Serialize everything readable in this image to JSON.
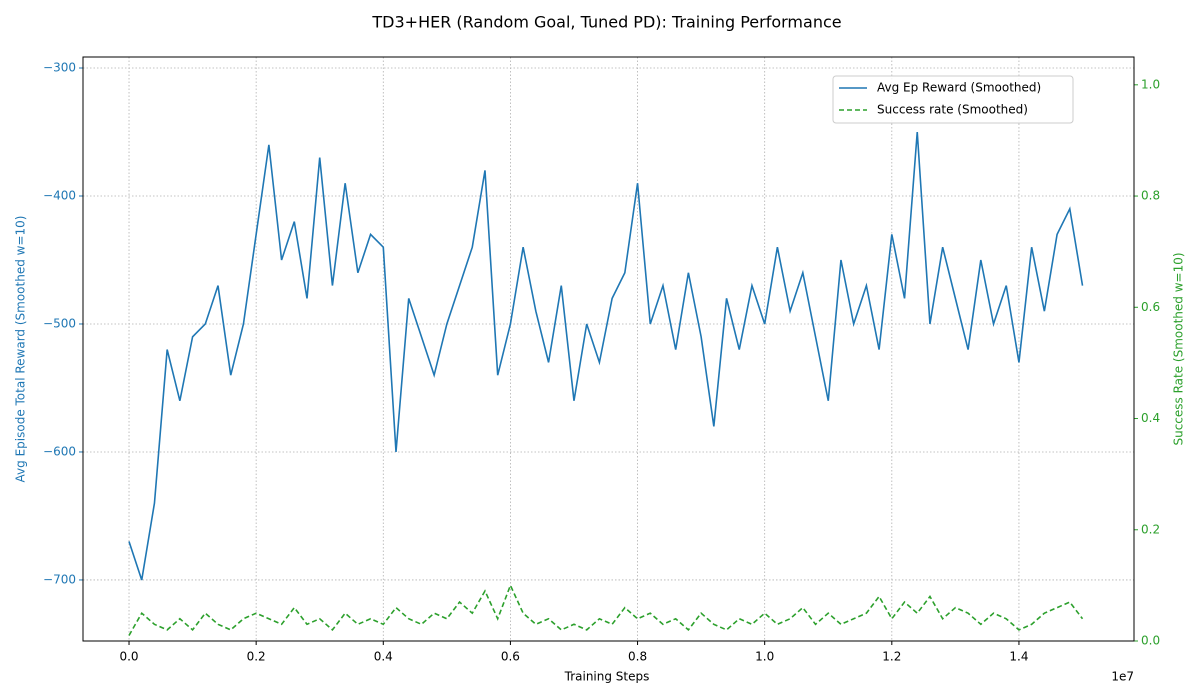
{
  "chart_data": {
    "type": "line",
    "title": "TD3+HER (Random Goal, Tuned PD): Training Performance",
    "xlabel": "Training Steps",
    "x_offset_label": "1e7",
    "ylabel": "Avg Episode Total Reward (Smoothed w=10)",
    "y2label": "Success Rate (Smoothed w=10)",
    "x": [
      0,
      200000,
      400000,
      600000,
      800000,
      1000000,
      1200000,
      1400000,
      1600000,
      1800000,
      2000000,
      2200000,
      2400000,
      2600000,
      2800000,
      3000000,
      3200000,
      3400000,
      3600000,
      3800000,
      4000000,
      4200000,
      4400000,
      4600000,
      4800000,
      5000000,
      5200000,
      5400000,
      5600000,
      5800000,
      6000000,
      6200000,
      6400000,
      6600000,
      6800000,
      7000000,
      7200000,
      7400000,
      7600000,
      7800000,
      8000000,
      8200000,
      8400000,
      8600000,
      8800000,
      9000000,
      9200000,
      9400000,
      9600000,
      9800000,
      10000000,
      10200000,
      10400000,
      10600000,
      10800000,
      11000000,
      11200000,
      11400000,
      11600000,
      11800000,
      12000000,
      12200000,
      12400000,
      12600000,
      12800000,
      13000000,
      13200000,
      13400000,
      13600000,
      13800000,
      14000000,
      14200000,
      14400000,
      14600000,
      14800000,
      15000000
    ],
    "series": [
      {
        "name": "Avg Ep Reward (Smoothed)",
        "color": "#1f77b4",
        "axis": "y",
        "dash": "solid",
        "values": [
          -670,
          -700,
          -640,
          -520,
          -560,
          -510,
          -500,
          -470,
          -540,
          -500,
          -430,
          -360,
          -450,
          -420,
          -480,
          -370,
          -470,
          -390,
          -460,
          -430,
          -440,
          -600,
          -480,
          -510,
          -540,
          -500,
          -470,
          -440,
          -380,
          -540,
          -500,
          -440,
          -490,
          -530,
          -470,
          -560,
          -500,
          -530,
          -480,
          -460,
          -390,
          -500,
          -470,
          -520,
          -460,
          -510,
          -580,
          -480,
          -520,
          -470,
          -500,
          -440,
          -490,
          -460,
          -510,
          -560,
          -450,
          -500,
          -470,
          -520,
          -430,
          -480,
          -350,
          -500,
          -440,
          -480,
          -520,
          -450,
          -500,
          -470,
          -530,
          -440,
          -490,
          -430,
          -410,
          -470
        ]
      },
      {
        "name": "Success rate (Smoothed)",
        "color": "#2ca02c",
        "axis": "y2",
        "dash": "dashed",
        "values": [
          0.01,
          0.05,
          0.03,
          0.02,
          0.04,
          0.02,
          0.05,
          0.03,
          0.02,
          0.04,
          0.05,
          0.04,
          0.03,
          0.06,
          0.03,
          0.04,
          0.02,
          0.05,
          0.03,
          0.04,
          0.03,
          0.06,
          0.04,
          0.03,
          0.05,
          0.04,
          0.07,
          0.05,
          0.09,
          0.04,
          0.1,
          0.05,
          0.03,
          0.04,
          0.02,
          0.03,
          0.02,
          0.04,
          0.03,
          0.06,
          0.04,
          0.05,
          0.03,
          0.04,
          0.02,
          0.05,
          0.03,
          0.02,
          0.04,
          0.03,
          0.05,
          0.03,
          0.04,
          0.06,
          0.03,
          0.05,
          0.03,
          0.04,
          0.05,
          0.08,
          0.04,
          0.07,
          0.05,
          0.08,
          0.04,
          0.06,
          0.05,
          0.03,
          0.05,
          0.04,
          0.02,
          0.03,
          0.05,
          0.06,
          0.07,
          0.04
        ]
      }
    ],
    "xlim": [
      -724000,
      15810000
    ],
    "xticks": [
      {
        "value": 0,
        "label": "0.0"
      },
      {
        "value": 2000000,
        "label": "0.2"
      },
      {
        "value": 4000000,
        "label": "0.4"
      },
      {
        "value": 6000000,
        "label": "0.6"
      },
      {
        "value": 8000000,
        "label": "0.8"
      },
      {
        "value": 10000000,
        "label": "1.0"
      },
      {
        "value": 12000000,
        "label": "1.2"
      },
      {
        "value": 14000000,
        "label": "1.4"
      }
    ],
    "ylim": [
      -747.7,
      -291.4
    ],
    "yticks": [
      {
        "value": -700,
        "label": "−700"
      },
      {
        "value": -600,
        "label": "−600"
      },
      {
        "value": -500,
        "label": "−500"
      },
      {
        "value": -400,
        "label": "−400"
      },
      {
        "value": -300,
        "label": "−300"
      }
    ],
    "y2lim": [
      0,
      1.05
    ],
    "y2ticks": [
      {
        "value": 0,
        "label": "0.0"
      },
      {
        "value": 0.2,
        "label": "0.2"
      },
      {
        "value": 0.4,
        "label": "0.4"
      },
      {
        "value": 0.6,
        "label": "0.6"
      },
      {
        "value": 0.8,
        "label": "0.8"
      },
      {
        "value": 1,
        "label": "1.0"
      }
    ],
    "grid": true,
    "legend_position": "upper right"
  }
}
